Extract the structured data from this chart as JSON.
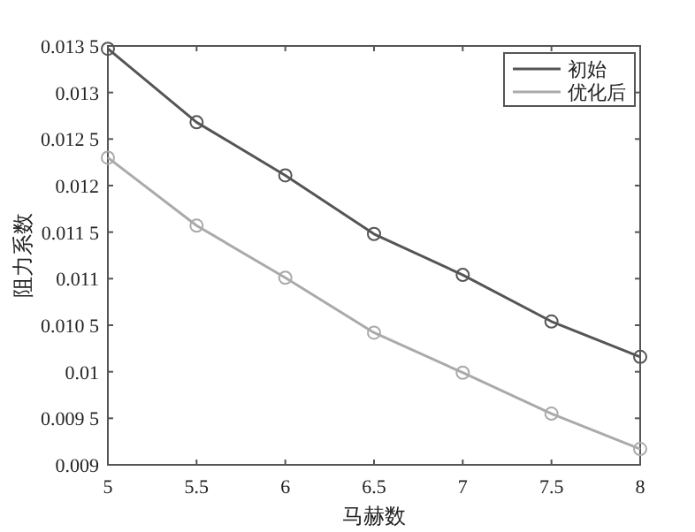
{
  "chart_data": {
    "type": "line",
    "xlabel": "马赫数",
    "ylabel": "阻力系数",
    "x": [
      5,
      5.5,
      6,
      6.5,
      7,
      7.5,
      8
    ],
    "series": [
      {
        "name": "初始",
        "color": "#555555",
        "values": [
          0.01347,
          0.01268,
          0.01211,
          0.01148,
          0.01104,
          0.01054,
          0.01016
        ]
      },
      {
        "name": "优化后",
        "color": "#aaaaaa",
        "values": [
          0.0123,
          0.01157,
          0.01101,
          0.01042,
          0.00999,
          0.00955,
          0.00917
        ]
      }
    ],
    "xlim": [
      5,
      8
    ],
    "xticks": [
      5,
      5.5,
      6,
      6.5,
      7,
      7.5,
      8
    ],
    "ylim": [
      0.009,
      0.0135
    ],
    "yticks": [
      0.009,
      {
        "value": 0.0095,
        "label": "0.009 5"
      },
      0.01,
      {
        "value": 0.0105,
        "label": "0.010 5"
      },
      0.011,
      {
        "value": 0.0115,
        "label": "0.011 5"
      },
      0.012,
      {
        "value": 0.0125,
        "label": "0.012 5"
      },
      0.013,
      {
        "value": 0.0135,
        "label": "0.013 5"
      }
    ],
    "marker": "circle",
    "line_style": "solid",
    "grid": false,
    "legend": "top right"
  }
}
